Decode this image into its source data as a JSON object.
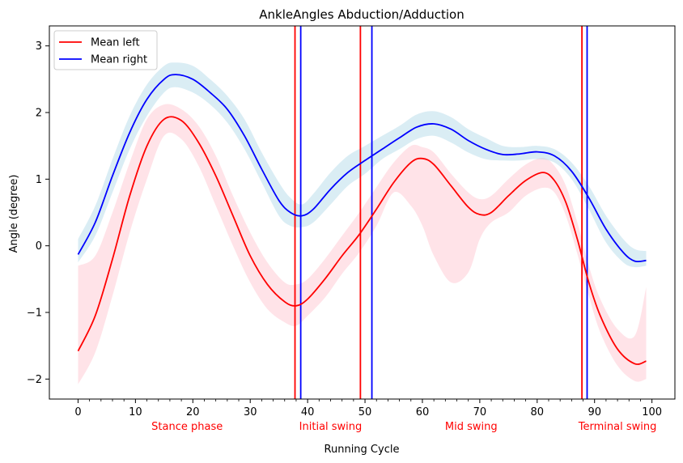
{
  "chart_data": {
    "type": "line",
    "title": "AnkleAngles Abduction/Adduction",
    "xlabel": "Running Cycle",
    "ylabel": "Angle (degree)",
    "xlim": [
      -5,
      104
    ],
    "ylim": [
      -2.3,
      3.3
    ],
    "xticks": [
      0,
      10,
      20,
      30,
      40,
      50,
      60,
      70,
      80,
      90,
      100
    ],
    "yticks": [
      -2,
      -1,
      0,
      1,
      2,
      3
    ],
    "legend_position": "top-left",
    "series": [
      {
        "name": "Mean left",
        "color": "#ff0000",
        "band_color": "#ffc0cb",
        "x": [
          0,
          3,
          6,
          9,
          12,
          15,
          18,
          21,
          24,
          27,
          30,
          33,
          36,
          38,
          40,
          43,
          46,
          49,
          52,
          55,
          58,
          60,
          62,
          65,
          68,
          70,
          72,
          75,
          78,
          81,
          83,
          85,
          87,
          89,
          91,
          94,
          97,
          99
        ],
        "y": [
          -1.58,
          -1.05,
          -0.2,
          0.75,
          1.5,
          1.9,
          1.88,
          1.55,
          1.05,
          0.45,
          -0.15,
          -0.58,
          -0.84,
          -0.9,
          -0.8,
          -0.5,
          -0.15,
          0.17,
          0.55,
          0.95,
          1.25,
          1.31,
          1.22,
          0.9,
          0.58,
          0.47,
          0.5,
          0.75,
          0.98,
          1.1,
          0.98,
          0.65,
          0.1,
          -0.55,
          -1.05,
          -1.55,
          -1.77,
          -1.73
        ],
        "lower": [
          -2.08,
          -1.6,
          -0.75,
          0.2,
          1.0,
          1.65,
          1.6,
          1.2,
          0.6,
          0.0,
          -0.55,
          -0.95,
          -1.15,
          -1.2,
          -1.05,
          -0.78,
          -0.42,
          -0.1,
          0.3,
          0.8,
          0.6,
          0.3,
          -0.15,
          -0.55,
          -0.4,
          0.1,
          0.35,
          0.5,
          0.75,
          0.87,
          0.8,
          0.45,
          -0.12,
          -0.75,
          -1.3,
          -1.8,
          -2.03,
          -2.0
        ],
        "upper": [
          -0.3,
          -0.15,
          0.5,
          1.25,
          1.9,
          2.12,
          2.05,
          1.8,
          1.35,
          0.75,
          0.2,
          -0.25,
          -0.55,
          -0.58,
          -0.5,
          -0.2,
          0.15,
          0.5,
          0.88,
          1.25,
          1.5,
          1.48,
          1.4,
          1.08,
          0.8,
          0.7,
          0.75,
          1.0,
          1.22,
          1.32,
          1.2,
          0.9,
          0.35,
          -0.3,
          -0.8,
          -1.25,
          -1.35,
          -0.62
        ]
      },
      {
        "name": "Mean right",
        "color": "#0000ff",
        "band_color": "#add8e6",
        "x": [
          0,
          3,
          6,
          9,
          12,
          15,
          17,
          20,
          23,
          26,
          29,
          32,
          35,
          37,
          39,
          41,
          44,
          47,
          50,
          53,
          56,
          59,
          62,
          65,
          68,
          71,
          74,
          77,
          80,
          83,
          86,
          89,
          92,
          95,
          97,
          99
        ],
        "y": [
          -0.13,
          0.35,
          1.05,
          1.7,
          2.2,
          2.5,
          2.57,
          2.5,
          2.3,
          2.05,
          1.65,
          1.15,
          0.68,
          0.5,
          0.45,
          0.55,
          0.85,
          1.1,
          1.28,
          1.45,
          1.62,
          1.78,
          1.83,
          1.75,
          1.58,
          1.45,
          1.37,
          1.38,
          1.41,
          1.35,
          1.12,
          0.72,
          0.25,
          -0.1,
          -0.23,
          -0.22
        ],
        "lower": [
          -0.25,
          0.15,
          0.8,
          1.45,
          1.95,
          2.3,
          2.38,
          2.3,
          2.12,
          1.85,
          1.45,
          0.95,
          0.45,
          0.3,
          0.28,
          0.35,
          0.62,
          0.9,
          1.08,
          1.3,
          1.45,
          1.6,
          1.65,
          1.55,
          1.4,
          1.3,
          1.28,
          1.28,
          1.3,
          1.25,
          1.0,
          0.55,
          0.05,
          -0.25,
          -0.32,
          -0.3
        ],
        "upper": [
          0.1,
          0.6,
          1.3,
          1.95,
          2.42,
          2.7,
          2.75,
          2.7,
          2.5,
          2.25,
          1.9,
          1.4,
          0.95,
          0.72,
          0.62,
          0.78,
          1.1,
          1.35,
          1.5,
          1.65,
          1.8,
          1.97,
          2.02,
          1.93,
          1.75,
          1.62,
          1.5,
          1.48,
          1.5,
          1.45,
          1.25,
          0.9,
          0.45,
          0.1,
          -0.05,
          -0.08
        ]
      }
    ],
    "vlines": [
      {
        "x": 37.8,
        "color": "#ff0000"
      },
      {
        "x": 38.8,
        "color": "#0000ff"
      },
      {
        "x": 49.2,
        "color": "#ff0000"
      },
      {
        "x": 51.2,
        "color": "#0000ff"
      },
      {
        "x": 87.8,
        "color": "#ff0000"
      },
      {
        "x": 88.7,
        "color": "#0000ff"
      }
    ],
    "phase_labels": [
      {
        "text": "Stance phase",
        "x": 19
      },
      {
        "text": "Initial swing",
        "x": 44
      },
      {
        "text": "Mid swing",
        "x": 68.5
      },
      {
        "text": "Terminal swing",
        "x": 94
      }
    ],
    "phase_label_color": "#ff0000"
  }
}
